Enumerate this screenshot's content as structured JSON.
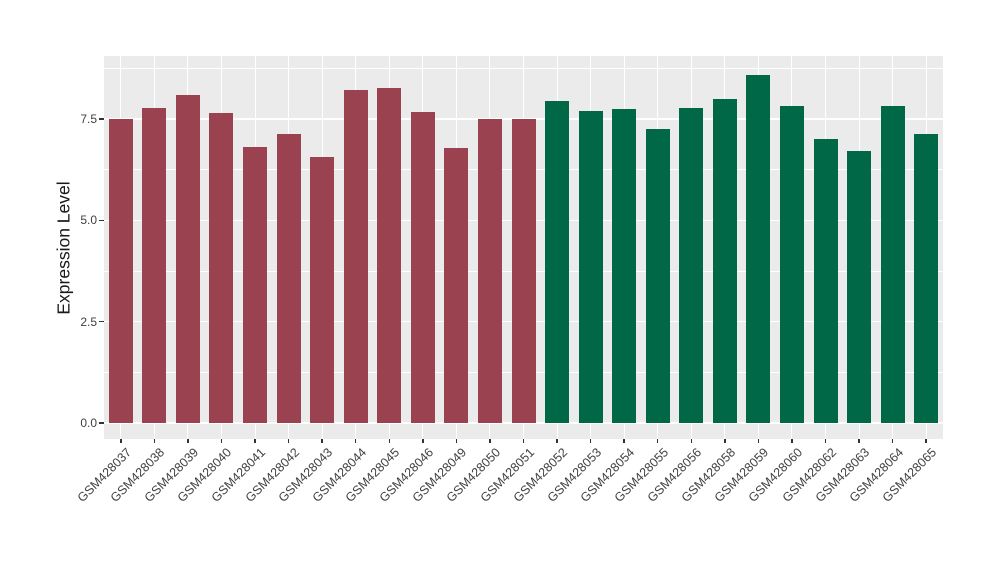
{
  "chart_data": {
    "type": "bar",
    "title": "",
    "xlabel": "",
    "ylabel": "Expression Level",
    "categories": [
      "GSM428037",
      "GSM428038",
      "GSM428039",
      "GSM428040",
      "GSM428041",
      "GSM428042",
      "GSM428043",
      "GSM428044",
      "GSM428045",
      "GSM428046",
      "GSM428049",
      "GSM428050",
      "GSM428051",
      "GSM428052",
      "GSM428053",
      "GSM428054",
      "GSM428055",
      "GSM428056",
      "GSM428058",
      "GSM428059",
      "GSM428060",
      "GSM428062",
      "GSM428063",
      "GSM428064",
      "GSM428065"
    ],
    "values": [
      7.5,
      7.77,
      8.1,
      7.66,
      6.82,
      7.14,
      6.57,
      8.23,
      8.26,
      7.68,
      6.79,
      7.5,
      7.49,
      7.95,
      7.7,
      7.75,
      7.25,
      7.78,
      7.99,
      8.6,
      7.82,
      7.0,
      6.71,
      7.82,
      7.13
    ],
    "groups": [
      {
        "name": "group-1",
        "color": "#9A4250",
        "count": 13
      },
      {
        "name": "group-2",
        "color": "#006747",
        "count": 12
      }
    ],
    "y_ticks": [
      0.0,
      2.5,
      5.0,
      7.5
    ],
    "y_tick_labels": [
      "0.0",
      "2.5",
      "5.0",
      "7.5"
    ],
    "y_minor_ticks": [
      1.25,
      3.75,
      6.25,
      8.75
    ],
    "ylim": [
      -0.395,
      9.057
    ],
    "grid": true,
    "legend": false,
    "panel_bg": "#EBEBEB",
    "grid_color": "#FFFFFF",
    "tick_color": "#333333"
  }
}
